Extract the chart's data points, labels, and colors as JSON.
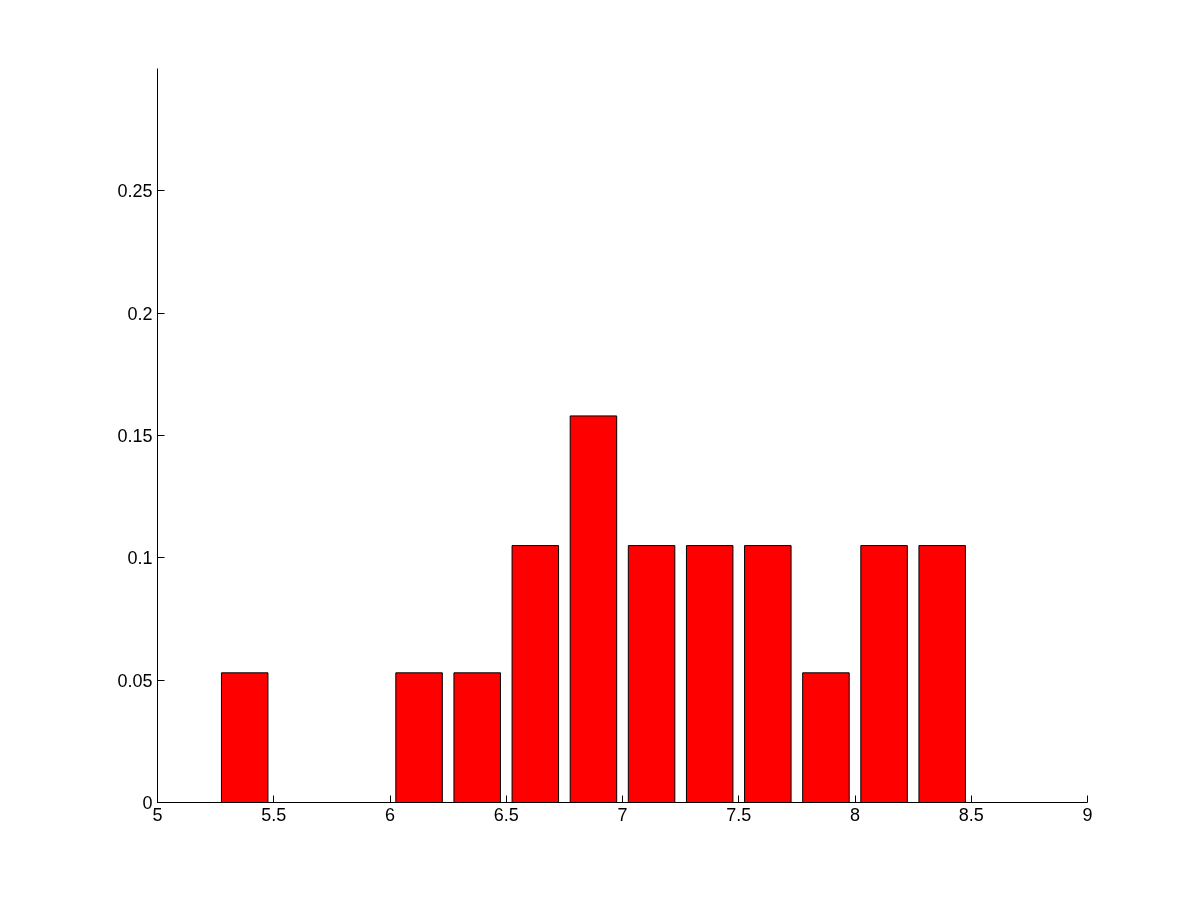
{
  "chart_data": {
    "type": "bar",
    "x": [
      5.375,
      6.125,
      6.375,
      6.625,
      6.875,
      7.125,
      7.375,
      7.625,
      7.875,
      8.125,
      8.375
    ],
    "values": [
      0.053,
      0.053,
      0.053,
      0.105,
      0.158,
      0.105,
      0.105,
      0.105,
      0.053,
      0.105,
      0.105
    ],
    "color": "#ff0000",
    "xlim": [
      5,
      9
    ],
    "xticks": [
      5,
      5.5,
      6,
      6.5,
      7,
      7.5,
      8,
      8.5,
      9
    ],
    "ylim": [
      0,
      0.3
    ],
    "yticks": [
      0,
      0.05,
      0.1,
      0.15,
      0.2,
      0.25
    ],
    "grid": false
  }
}
